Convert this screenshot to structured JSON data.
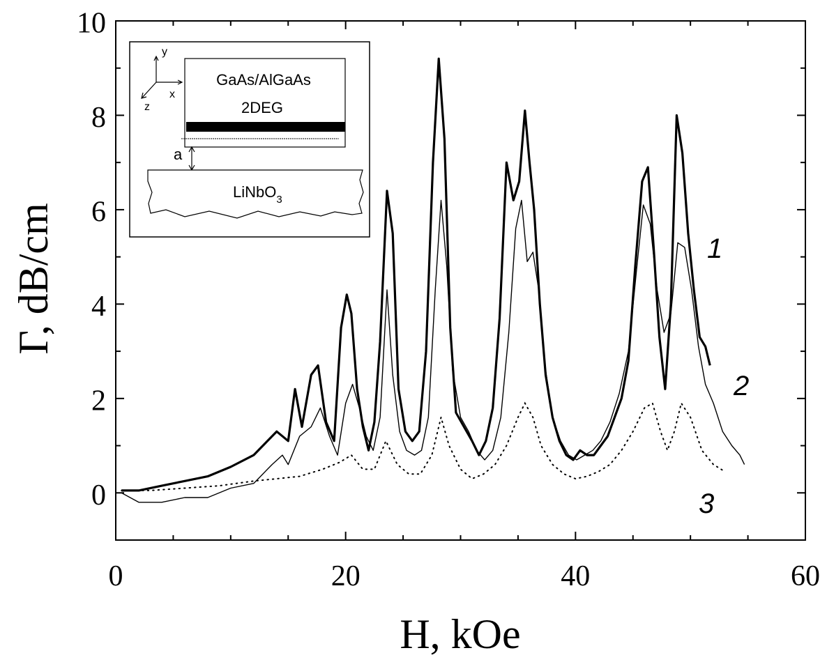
{
  "chart_data": {
    "type": "line",
    "xlabel": "H, kOe",
    "ylabel": "Γ, dB/cm",
    "xlim": [
      0,
      60
    ],
    "ylim": [
      -1,
      10
    ],
    "x_ticks": [
      "0",
      "20",
      "40",
      "60"
    ],
    "y_ticks": [
      "0",
      "2",
      "4",
      "6",
      "8",
      "10"
    ],
    "grid": false,
    "series": [
      {
        "name": "1",
        "style": "thick",
        "x": [
          0.5,
          2,
          4,
          6,
          8,
          10,
          12,
          14,
          15,
          15.6,
          16.2,
          17,
          17.6,
          18.3,
          19,
          19.6,
          20.1,
          20.5,
          21,
          21.5,
          22,
          22.5,
          23,
          23.6,
          24.1,
          24.6,
          25.2,
          25.8,
          26.4,
          27,
          27.6,
          28.1,
          28.6,
          29.1,
          29.6,
          30.3,
          31,
          31.6,
          32.2,
          32.8,
          33.4,
          34,
          34.6,
          35.1,
          35.6,
          36,
          36.4,
          36.9,
          37.4,
          38,
          38.6,
          39.2,
          39.8,
          40.4,
          41,
          41.6,
          42.2,
          42.8,
          43.4,
          44,
          44.6,
          45.2,
          45.8,
          46.3,
          46.8,
          47.3,
          47.8,
          48.3,
          48.8,
          49.3,
          49.8,
          50.3,
          50.8,
          51.3,
          51.7
        ],
        "y": [
          0.05,
          0.05,
          0.15,
          0.25,
          0.35,
          0.55,
          0.8,
          1.3,
          1.1,
          2.2,
          1.4,
          2.5,
          2.7,
          1.5,
          1.1,
          3.5,
          4.2,
          3.8,
          2.2,
          1.4,
          0.9,
          1.5,
          3.2,
          6.4,
          5.5,
          2.2,
          1.3,
          1.1,
          1.3,
          3.0,
          7.0,
          9.2,
          7.5,
          3.5,
          1.7,
          1.4,
          1.1,
          0.8,
          1.1,
          1.8,
          3.7,
          7.0,
          6.2,
          6.6,
          8.1,
          7.0,
          6.0,
          4.0,
          2.5,
          1.6,
          1.1,
          0.8,
          0.7,
          0.9,
          0.8,
          0.8,
          1.0,
          1.2,
          1.6,
          2.0,
          2.8,
          4.8,
          6.6,
          6.9,
          5.2,
          3.3,
          2.2,
          4.0,
          8.0,
          7.2,
          5.5,
          4.3,
          3.3,
          3.1,
          2.7
        ]
      },
      {
        "name": "2",
        "style": "thin",
        "x": [
          0.5,
          2,
          4,
          6,
          8,
          10,
          12,
          13.6,
          14.5,
          15,
          16,
          17,
          17.8,
          18.6,
          19.3,
          20,
          20.6,
          21.2,
          21.8,
          22.4,
          23,
          23.6,
          24.1,
          24.7,
          25.3,
          26,
          26.6,
          27.2,
          27.8,
          28.3,
          28.8,
          29.3,
          30,
          30.7,
          31.4,
          32.1,
          32.8,
          33.5,
          34.2,
          34.8,
          35.3,
          35.8,
          36.3,
          36.8,
          37.4,
          38,
          38.7,
          39.4,
          40.1,
          40.8,
          41.5,
          42.2,
          43,
          43.8,
          44.6,
          45.3,
          45.9,
          46.5,
          47.1,
          47.7,
          48.3,
          48.9,
          49.5,
          50.1,
          50.7,
          51.3,
          52,
          52.8,
          53.6,
          54.3,
          54.7
        ],
        "y": [
          0.0,
          -0.2,
          -0.2,
          -0.1,
          -0.1,
          0.1,
          0.2,
          0.6,
          0.8,
          0.6,
          1.2,
          1.4,
          1.8,
          1.2,
          0.8,
          1.9,
          2.3,
          1.8,
          1.2,
          0.9,
          1.6,
          4.3,
          2.5,
          1.3,
          0.9,
          0.8,
          0.9,
          1.6,
          4.3,
          6.2,
          4.8,
          2.6,
          1.6,
          1.3,
          0.9,
          0.7,
          0.9,
          1.6,
          3.4,
          5.6,
          6.2,
          4.9,
          5.1,
          4.3,
          2.6,
          1.6,
          1.1,
          0.8,
          0.7,
          0.8,
          0.9,
          1.1,
          1.5,
          2.1,
          3.0,
          4.7,
          6.1,
          5.7,
          4.3,
          3.4,
          3.8,
          5.3,
          5.2,
          4.3,
          3.1,
          2.3,
          1.9,
          1.3,
          1.0,
          0.8,
          0.6
        ]
      },
      {
        "name": "3",
        "style": "dotted",
        "x": [
          0.5,
          3,
          6,
          9,
          12,
          14,
          16,
          18,
          19.5,
          20.5,
          21.5,
          22.5,
          23.5,
          24.5,
          25.5,
          26.5,
          27.5,
          28.3,
          29,
          30,
          31,
          32,
          33,
          34,
          35,
          35.6,
          36.3,
          37,
          38,
          39,
          40,
          41,
          42,
          43,
          44,
          45,
          46,
          46.7,
          47.4,
          48,
          48.6,
          49.2,
          50,
          51,
          52,
          53
        ],
        "y": [
          0.05,
          0.05,
          0.1,
          0.15,
          0.25,
          0.3,
          0.35,
          0.5,
          0.65,
          0.8,
          0.5,
          0.5,
          1.1,
          0.6,
          0.4,
          0.4,
          0.8,
          1.6,
          1.0,
          0.5,
          0.3,
          0.4,
          0.6,
          1.0,
          1.6,
          1.9,
          1.6,
          1.0,
          0.6,
          0.4,
          0.3,
          0.35,
          0.45,
          0.6,
          0.9,
          1.3,
          1.8,
          1.9,
          1.3,
          0.9,
          1.3,
          1.9,
          1.6,
          0.9,
          0.6,
          0.45
        ]
      }
    ],
    "annotations": [
      "1",
      "2",
      "3"
    ]
  },
  "inset": {
    "axis_y": "y",
    "axis_x": "x",
    "axis_z": "z",
    "sample_line1": "GaAs/AlGaAs",
    "sample_line2": "2DEG",
    "gap_label": "a",
    "substrate_main": "LiNbO",
    "substrate_sub": "3"
  }
}
